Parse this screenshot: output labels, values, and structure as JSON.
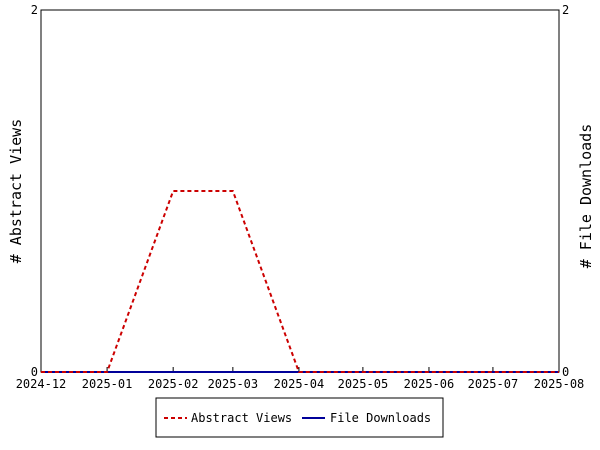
{
  "chart_data": {
    "type": "line",
    "x": [
      "2024-12",
      "2025-01",
      "2025-02",
      "2025-03",
      "2025-04",
      "2025-05",
      "2025-06",
      "2025-07",
      "2025-08"
    ],
    "series": [
      {
        "name": "Abstract Views",
        "axis": "left",
        "color": "#cc0000",
        "style": "dashed",
        "values": [
          0,
          0,
          1,
          1,
          0,
          0,
          0,
          0,
          0
        ]
      },
      {
        "name": "File Downloads",
        "axis": "right",
        "color": "#000099",
        "style": "solid",
        "values": [
          0,
          0,
          0,
          0,
          0,
          0,
          0,
          0,
          0
        ]
      }
    ],
    "ylabel_left": "# Abstract Views",
    "ylabel_right": "# File Downloads",
    "ylim_left": [
      0,
      2
    ],
    "ylim_right": [
      0,
      2
    ],
    "yticks_left": [
      "0",
      "2"
    ],
    "yticks_right": [
      "0",
      "2"
    ],
    "grid": false,
    "legend_position": "bottom"
  }
}
